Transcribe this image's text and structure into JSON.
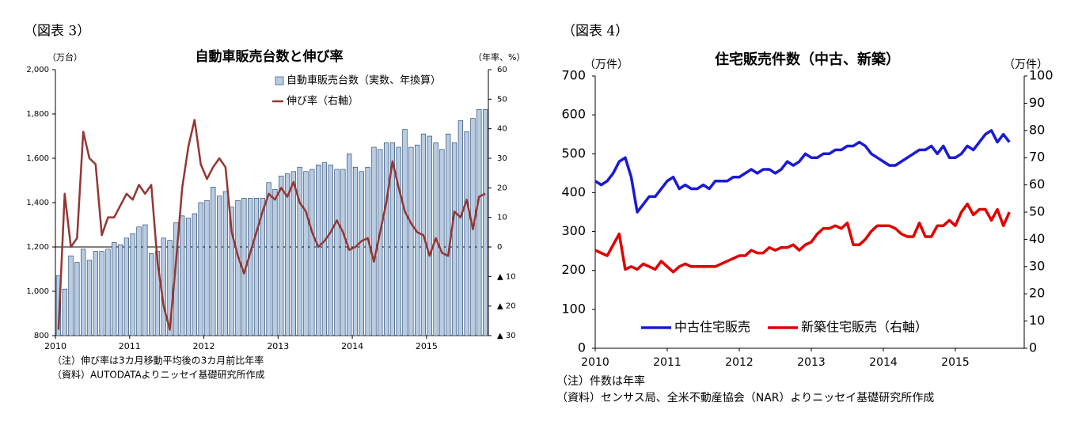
{
  "chart_data": [
    {
      "type": "bar",
      "figure_label": "（図表 3）",
      "title": "自動車販売台数と伸び率",
      "y_label": "（万台）",
      "y2_label": "（年率、%）",
      "categories": [
        "2010",
        null,
        null,
        null,
        null,
        null,
        null,
        null,
        null,
        null,
        null,
        null,
        "2011",
        null,
        null,
        null,
        null,
        null,
        null,
        null,
        null,
        null,
        null,
        null,
        "2012",
        null,
        null,
        null,
        null,
        null,
        null,
        null,
        null,
        null,
        null,
        null,
        "2013",
        null,
        null,
        null,
        null,
        null,
        null,
        null,
        null,
        null,
        null,
        null,
        "2014",
        null,
        null,
        null,
        null,
        null,
        null,
        null,
        null,
        null,
        null,
        null,
        "2015",
        null,
        null,
        null,
        null,
        null,
        null,
        null,
        null,
        null
      ],
      "series": [
        {
          "name": "自動車販売台数（実数、年換算）",
          "type": "bar",
          "color": "#b8cce4",
          "values": [
            1070,
            1010,
            1160,
            1130,
            1190,
            1140,
            1180,
            1180,
            1190,
            1220,
            1210,
            1240,
            1260,
            1290,
            1300,
            1170,
            1180,
            1240,
            1230,
            1310,
            1340,
            1330,
            1350,
            1400,
            1410,
            1470,
            1430,
            1450,
            1380,
            1410,
            1420,
            1420,
            1420,
            1420,
            1490,
            1460,
            1520,
            1530,
            1540,
            1560,
            1540,
            1550,
            1570,
            1580,
            1570,
            1550,
            1550,
            1620,
            1560,
            1540,
            1560,
            1650,
            1640,
            1670,
            1670,
            1650,
            1730,
            1650,
            1660,
            1710,
            1700,
            1670,
            1640,
            1710,
            1670,
            1770,
            1720,
            1780,
            1820,
            1820
          ]
        },
        {
          "name": "伸び率（右軸）",
          "type": "line",
          "axis": "y2",
          "color": "#943634",
          "values": [
            -28,
            18,
            0,
            3,
            39,
            30,
            28,
            4,
            10,
            10,
            14,
            18,
            16,
            21,
            18,
            21,
            -5,
            -20,
            -28,
            -5,
            20,
            34,
            43,
            28,
            23,
            27,
            30,
            27,
            5,
            -3,
            -9,
            -2,
            5,
            12,
            18,
            16,
            20,
            17,
            22,
            15,
            12,
            5,
            0,
            2,
            5,
            9,
            5,
            -1,
            0,
            2,
            3,
            -5,
            5,
            15,
            29,
            20,
            12,
            8,
            5,
            4,
            -3,
            3,
            -2,
            -3,
            12,
            10,
            16,
            6,
            17,
            18
          ]
        }
      ],
      "ylim": [
        800,
        2000
      ],
      "yticks": [
        800,
        {
          "value": 1000,
          "label": "1,000"
        },
        {
          "value": 1200,
          "label": "1,200"
        },
        {
          "value": 1400,
          "label": "1,400"
        },
        {
          "value": 1600,
          "label": "1,600"
        },
        {
          "value": 1800,
          "label": "1,800"
        },
        {
          "value": 2000,
          "label": "2,000"
        }
      ],
      "y2lim": [
        -30,
        60
      ],
      "y2ticks": [
        60,
        50,
        40,
        30,
        20,
        10,
        0,
        {
          "value": -10,
          "label": "▲ 10"
        },
        {
          "value": -20,
          "label": "▲ 20"
        },
        {
          "value": -30,
          "label": "▲ 30"
        }
      ],
      "notes": [
        "（注）伸び率は3カ月移動平均後の3カ月前比年率",
        "（資料）AUTODATAよりニッセイ基礎研究所作成"
      ],
      "legend": "upper right"
    },
    {
      "type": "line",
      "figure_label": "（図表 4）",
      "title": "住宅販売件数（中古、新築）",
      "y_label": "（万件）",
      "y2_label": "（万件）",
      "categories": [
        "2010",
        null,
        null,
        null,
        null,
        null,
        null,
        null,
        null,
        null,
        null,
        null,
        "2011",
        null,
        null,
        null,
        null,
        null,
        null,
        null,
        null,
        null,
        null,
        null,
        "2012",
        null,
        null,
        null,
        null,
        null,
        null,
        null,
        null,
        null,
        null,
        null,
        "2013",
        null,
        null,
        null,
        null,
        null,
        null,
        null,
        null,
        null,
        null,
        null,
        "2014",
        null,
        null,
        null,
        null,
        null,
        null,
        null,
        null,
        null,
        null,
        null,
        "2015",
        null,
        null,
        null,
        null,
        null,
        null,
        null,
        null,
        null
      ],
      "series": [
        {
          "name": "中古住宅販売",
          "type": "line",
          "color": "#1a1ad6",
          "values": [
            430,
            420,
            430,
            450,
            480,
            490,
            440,
            350,
            370,
            390,
            390,
            410,
            430,
            440,
            410,
            420,
            410,
            410,
            420,
            410,
            430,
            430,
            430,
            440,
            440,
            450,
            460,
            450,
            460,
            460,
            450,
            460,
            480,
            470,
            480,
            500,
            490,
            490,
            500,
            500,
            510,
            510,
            520,
            520,
            530,
            520,
            500,
            490,
            480,
            470,
            470,
            480,
            490,
            500,
            510,
            510,
            520,
            500,
            520,
            490,
            490,
            500,
            520,
            510,
            530,
            550,
            560,
            530,
            550,
            530
          ]
        },
        {
          "name": "新築住宅販売（右軸）",
          "type": "line",
          "axis": "y2",
          "color": "#e00000",
          "values": [
            36,
            35,
            34,
            38,
            42,
            29,
            30,
            29,
            31,
            30,
            29,
            32,
            30,
            28,
            30,
            31,
            30,
            30,
            30,
            30,
            30,
            31,
            32,
            33,
            34,
            34,
            36,
            35,
            35,
            37,
            36,
            37,
            37,
            38,
            36,
            38,
            39,
            42,
            44,
            44,
            45,
            44,
            46,
            38,
            38,
            40,
            43,
            45,
            45,
            45,
            44,
            42,
            41,
            41,
            46,
            41,
            41,
            45,
            45,
            47,
            45,
            50,
            53,
            49,
            51,
            51,
            47,
            51,
            45,
            50
          ]
        }
      ],
      "ylim": [
        0,
        700
      ],
      "yticks": [
        0,
        100,
        200,
        300,
        400,
        500,
        600,
        700
      ],
      "y2lim": [
        0,
        100
      ],
      "y2ticks": [
        0,
        10,
        20,
        30,
        40,
        50,
        60,
        70,
        80,
        90,
        100
      ],
      "notes": [
        "（注）件数は年率",
        "（資料）センサス局、全米不動産協会（NAR）よりニッセイ基礎研究所作成"
      ],
      "legend": "lower center"
    }
  ]
}
